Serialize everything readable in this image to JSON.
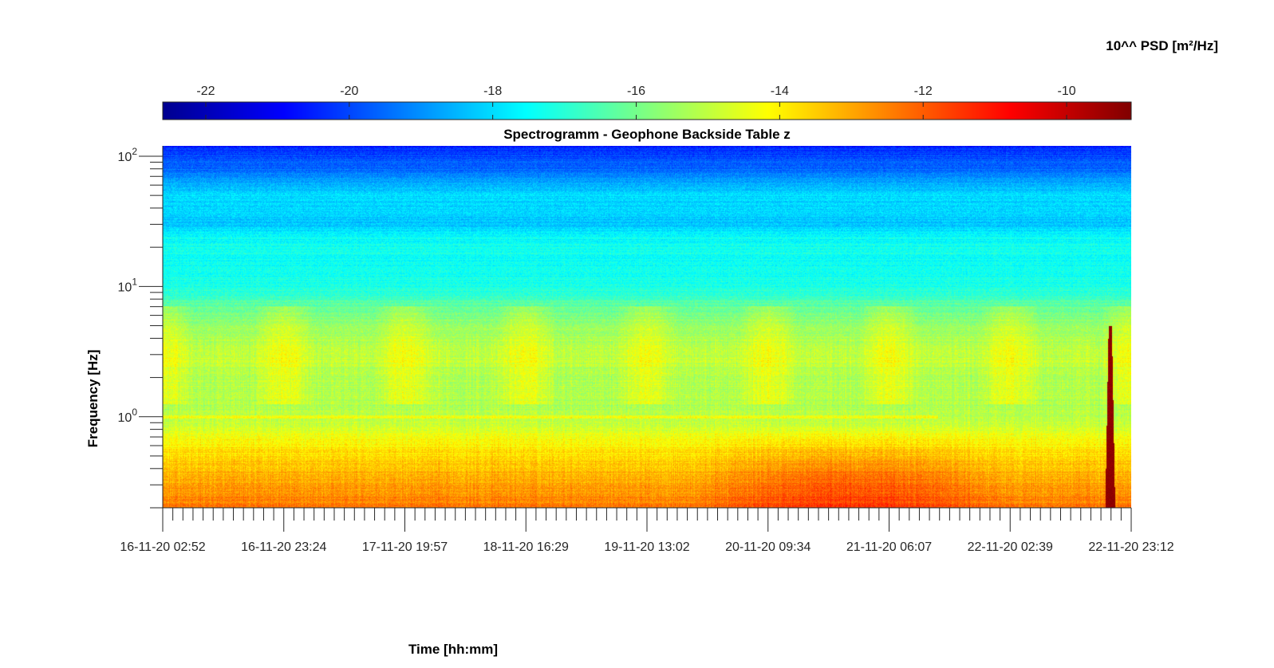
{
  "chart_data": {
    "type": "heatmap",
    "title": "Spectrogramm - Geophone Backside Table z",
    "xlabel": "Time [hh:mm]",
    "ylabel": "Frequency [Hz]",
    "yscale": "log",
    "ylim": [
      0.2,
      120
    ],
    "x_tick_labels": [
      "16-11-20 02:52",
      "16-11-20 23:24",
      "17-11-20 19:57",
      "18-11-20 16:29",
      "19-11-20 13:02",
      "20-11-20 09:34",
      "21-11-20 06:07",
      "22-11-20 02:39",
      "22-11-20 23:12"
    ],
    "y_ticks": [
      {
        "base": "10",
        "exp": "0",
        "value": 1
      },
      {
        "base": "10",
        "exp": "1",
        "value": 10
      },
      {
        "base": "10",
        "exp": "2",
        "value": 100
      }
    ],
    "colorbar": {
      "label": "10^^ PSD [m²/Hz]",
      "colormap": "jet",
      "location": "top",
      "range": [
        -22.6,
        -9.1
      ],
      "ticks": [
        -22,
        -20,
        -18,
        -16,
        -14,
        -12,
        -10
      ],
      "tick_labels": [
        "-22",
        "-20",
        "-18",
        "-16",
        "-14",
        "-12",
        "-10"
      ]
    },
    "spectrum_profile": [
      {
        "f": 0.2,
        "level": -12.4
      },
      {
        "f": 0.3,
        "level": -12.9
      },
      {
        "f": 0.55,
        "level": -13.8
      },
      {
        "f": 0.7,
        "level": -14.3
      },
      {
        "f": 1.0,
        "level": -15.2
      },
      {
        "f": 2.0,
        "level": -15.2
      },
      {
        "f": 3.0,
        "level": -14.9
      },
      {
        "f": 5.0,
        "level": -15.6
      },
      {
        "f": 10,
        "level": -16.9
      },
      {
        "f": 24,
        "level": -17.5
      },
      {
        "f": 30,
        "level": -18.3
      },
      {
        "f": 50,
        "level": -18.0
      },
      {
        "f": 80,
        "level": -19.5
      },
      {
        "f": 120,
        "level": -20.4
      }
    ],
    "event": {
      "time_fraction": 0.978,
      "level": -9.3
    }
  }
}
